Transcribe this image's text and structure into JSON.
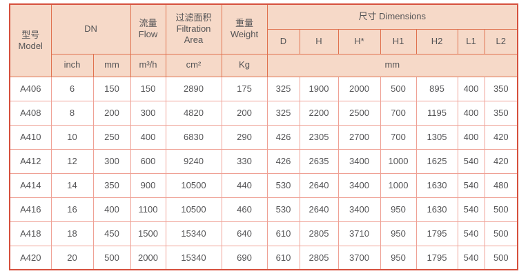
{
  "table": {
    "header": {
      "model_zh": "型号",
      "model_en": "Model",
      "dn": "DN",
      "flow_zh": "流量",
      "flow_en": "Flow",
      "filtration_zh": "过滤面积",
      "filtration_en1": "Filtration",
      "filtration_en2": "Area",
      "weight_zh": "重量",
      "weight_en": "Weight",
      "dimensions": "尺寸 Dimensions",
      "dim_cols": [
        "D",
        "H",
        "H*",
        "H1",
        "H2",
        "L1",
        "L2"
      ],
      "units": {
        "inch": "inch",
        "mm": "mm",
        "flow": "m³/h",
        "area": "cm²",
        "weight": "Kg",
        "dims_mm": "mm"
      }
    },
    "row_keys": [
      "model",
      "inch",
      "mm",
      "flow",
      "area",
      "weight",
      "d",
      "h",
      "h_star",
      "h1",
      "h2",
      "l1",
      "l2"
    ],
    "rows": [
      {
        "model": "A406",
        "inch": "6",
        "mm": "150",
        "flow": "150",
        "area": "2890",
        "weight": "175",
        "d": "325",
        "h": "1900",
        "h_star": "2000",
        "h1": "500",
        "h2": "895",
        "l1": "400",
        "l2": "350"
      },
      {
        "model": "A408",
        "inch": "8",
        "mm": "200",
        "flow": "300",
        "area": "4820",
        "weight": "200",
        "d": "325",
        "h": "2200",
        "h_star": "2500",
        "h1": "700",
        "h2": "1195",
        "l1": "400",
        "l2": "350"
      },
      {
        "model": "A410",
        "inch": "10",
        "mm": "250",
        "flow": "400",
        "area": "6830",
        "weight": "290",
        "d": "426",
        "h": "2305",
        "h_star": "2700",
        "h1": "700",
        "h2": "1305",
        "l1": "400",
        "l2": "420"
      },
      {
        "model": "A412",
        "inch": "12",
        "mm": "300",
        "flow": "600",
        "area": "9240",
        "weight": "330",
        "d": "426",
        "h": "2635",
        "h_star": "3400",
        "h1": "1000",
        "h2": "1625",
        "l1": "540",
        "l2": "420"
      },
      {
        "model": "A414",
        "inch": "14",
        "mm": "350",
        "flow": "900",
        "area": "10500",
        "weight": "440",
        "d": "530",
        "h": "2640",
        "h_star": "3400",
        "h1": "1000",
        "h2": "1630",
        "l1": "540",
        "l2": "480"
      },
      {
        "model": "A416",
        "inch": "16",
        "mm": "400",
        "flow": "1100",
        "area": "10500",
        "weight": "460",
        "d": "530",
        "h": "2640",
        "h_star": "3400",
        "h1": "950",
        "h2": "1630",
        "l1": "540",
        "l2": "500"
      },
      {
        "model": "A418",
        "inch": "18",
        "mm": "450",
        "flow": "1500",
        "area": "15340",
        "weight": "640",
        "d": "610",
        "h": "2805",
        "h_star": "3710",
        "h1": "950",
        "h2": "1795",
        "l1": "540",
        "l2": "500"
      },
      {
        "model": "A420",
        "inch": "20",
        "mm": "500",
        "flow": "2000",
        "area": "15340",
        "weight": "690",
        "d": "610",
        "h": "2805",
        "h_star": "3700",
        "h1": "950",
        "h2": "1795",
        "l1": "540",
        "l2": "500"
      }
    ],
    "colors": {
      "header_bg": "#f6d9c8",
      "header_border": "#e0714e",
      "data_border": "#efa195",
      "outer_border": "#d6503d",
      "text": "#545456"
    }
  }
}
